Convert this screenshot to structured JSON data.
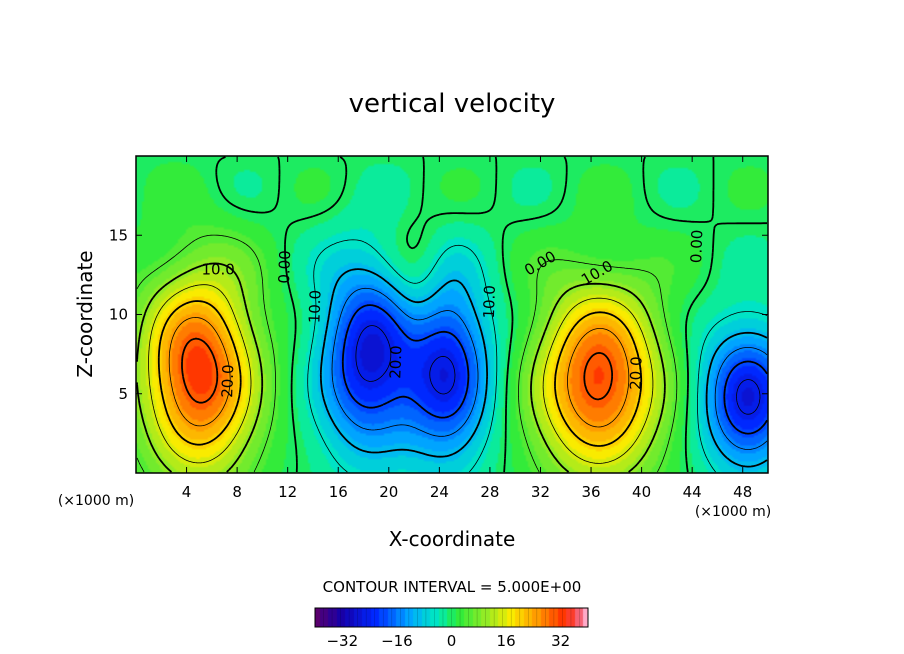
{
  "chart_data": {
    "type": "heatmap",
    "title": "vertical velocity",
    "xlabel": "X-coordinate",
    "ylabel": "Z-coordinate",
    "x_unit_left": "(×1000 m)",
    "x_unit_right": "(×1000 m)",
    "xlim": [
      0,
      50
    ],
    "ylim": [
      0,
      20
    ],
    "x_ticks": [
      4,
      8,
      12,
      16,
      20,
      24,
      28,
      32,
      36,
      40,
      44,
      48
    ],
    "y_ticks": [
      5,
      10,
      15
    ],
    "contour_interval_text": "CONTOUR INTERVAL = 5.000E+00",
    "contour_labels": [
      {
        "text": "10.0",
        "x": 6.5,
        "y": 12.8,
        "rot": 0
      },
      {
        "text": "20.0",
        "x": 7.3,
        "y": 5.8,
        "rot": -88
      },
      {
        "text": "0.00",
        "x": 11.8,
        "y": 13.0,
        "rot": -88
      },
      {
        "text": "10.0",
        "x": 14.2,
        "y": 10.5,
        "rot": -88
      },
      {
        "text": "20.0",
        "x": 20.6,
        "y": 7.0,
        "rot": -88
      },
      {
        "text": "10.0",
        "x": 28.0,
        "y": 10.8,
        "rot": -88
      },
      {
        "text": "0.00",
        "x": 32.0,
        "y": 13.2,
        "rot": -30
      },
      {
        "text": "10.0",
        "x": 36.5,
        "y": 12.6,
        "rot": -30
      },
      {
        "text": "20.0",
        "x": 39.6,
        "y": 6.3,
        "rot": -88
      },
      {
        "text": "0.00",
        "x": 44.4,
        "y": 14.3,
        "rot": -88
      }
    ],
    "cells": [
      {
        "cx": 5.0,
        "cz": 6.3,
        "sx": 3.2,
        "sz": 4.5,
        "amp": 33
      },
      {
        "cx": 18.3,
        "cz": 7.3,
        "sx": 2.7,
        "sz": 4.2,
        "amp": -26
      },
      {
        "cx": 24.6,
        "cz": 6.6,
        "sx": 2.5,
        "sz": 4.0,
        "amp": -25
      },
      {
        "cx": 36.6,
        "cz": 5.8,
        "sx": 3.5,
        "sz": 4.2,
        "amp": 32
      },
      {
        "cx": 48.4,
        "cz": 4.8,
        "sx": 2.6,
        "sz": 3.2,
        "amp": -26
      },
      {
        "cx": 22.2,
        "cz": 11.5,
        "sx": 1.6,
        "sz": 3.2,
        "amp": 6
      }
    ],
    "colorbar": {
      "min": -40,
      "max": 40,
      "tick_values": [
        -32,
        -16,
        0,
        16,
        32
      ],
      "tick_labels": [
        "−32",
        "−16",
        "0",
        "16",
        "32"
      ]
    }
  }
}
